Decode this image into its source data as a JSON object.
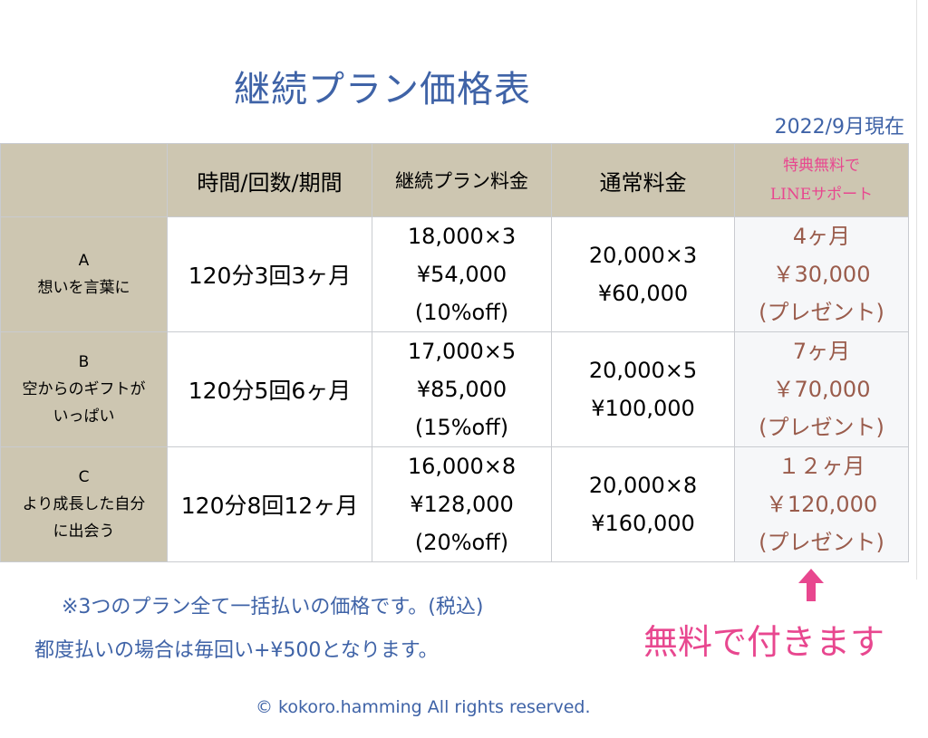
{
  "title": "継続プラン価格表",
  "date": "2022/9月現在",
  "table": {
    "headers": [
      "",
      "時間/回数/期間",
      "継続プラン料金",
      "通常料金",
      [
        "特典無料で",
        "LINEサポート"
      ]
    ],
    "rows": [
      {
        "label": [
          "A",
          "想いを言葉に"
        ],
        "plan": "120分3回3ヶ月",
        "continuous": [
          "18,000×3",
          "¥54,000",
          "(10%off)"
        ],
        "regular": [
          "20,000×3",
          "¥60,000"
        ],
        "bonus": [
          "4ヶ月",
          "￥30,000",
          "(プレゼント)"
        ]
      },
      {
        "label": [
          "B",
          "空からのギフトが",
          "いっぱい"
        ],
        "plan": "120分5回6ヶ月",
        "continuous": [
          "17,000×5",
          "¥85,000",
          "(15%off)"
        ],
        "regular": [
          "20,000×5",
          "¥100,000"
        ],
        "bonus": [
          "7ヶ月",
          "￥70,000",
          "(プレゼント)"
        ]
      },
      {
        "label": [
          "C",
          "より成長した自分",
          "に出会う"
        ],
        "plan": "120分8回12ヶ月",
        "continuous": [
          "16,000×8",
          "¥128,000",
          "(20%off)"
        ],
        "regular": [
          "20,000×8",
          "¥160,000"
        ],
        "bonus": [
          "１２ヶ月",
          "￥120,000",
          "(プレゼント)"
        ]
      }
    ]
  },
  "notes": {
    "line1": "※3つのプラン全て一括払いの価格です。(税込)",
    "line2": "都度払いの場合は毎回い+¥500となります。"
  },
  "free_label": "無料で付きます",
  "arrow_icon": "arrow-up-icon",
  "copyright": "© kokoro.hamming All rights reserved.",
  "colors": {
    "blue": "#3f63a7",
    "pink": "#e8478f",
    "header_bg": "#cdc6b1",
    "bonus_text": "#9a5c4c"
  }
}
